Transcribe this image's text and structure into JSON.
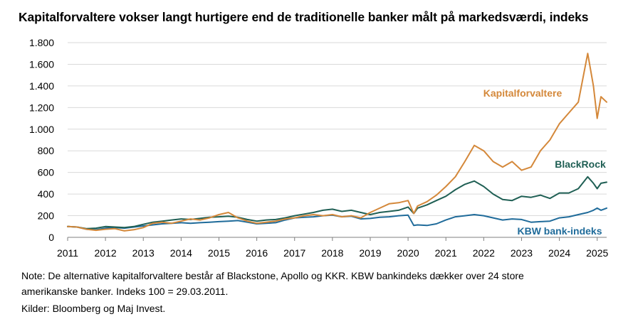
{
  "title": "Kapitalforvaltere vokser langt hurtigere end de traditionelle banker målt på markedsværdi, indeks",
  "note_line1": "Note: De alternative kapitalforvaltere består af Blackstone, Apollo og KKR. KBW bankindeks dækker over 24 store",
  "note_line2": "amerikanske banker. Indeks 100 = 29.03.2011.",
  "sources": "Kilder: Bloomberg og Maj Invest.",
  "chart_data": {
    "type": "line",
    "title": "Kapitalforvaltere vokser langt hurtigere end de traditionelle banker målt på markedsværdi, indeks",
    "xlabel": "",
    "ylabel": "",
    "xlim": [
      2011.0,
      2025.25
    ],
    "ylim": [
      0,
      1800
    ],
    "x_ticks": [
      2011,
      2012,
      2013,
      2014,
      2015,
      2016,
      2017,
      2018,
      2019,
      2020,
      2021,
      2022,
      2023,
      2024,
      2025
    ],
    "x_tick_labels": [
      "2011",
      "2012",
      "2013",
      "2014",
      "2015",
      "2016",
      "2017",
      "2018",
      "2019",
      "2020",
      "2021",
      "2022",
      "2023",
      "2024",
      "2025"
    ],
    "y_ticks": [
      0,
      200,
      400,
      600,
      800,
      1000,
      1200,
      1400,
      1600,
      1800
    ],
    "y_tick_labels": [
      "0",
      "200",
      "400",
      "600",
      "800",
      "1.000",
      "1.200",
      "1.400",
      "1.600",
      "1.800"
    ],
    "grid": "horizontal",
    "series": [
      {
        "name": "Kapitalforvaltere",
        "color": "#d4883a",
        "x": [
          2011.0,
          2011.25,
          2011.5,
          2011.75,
          2012.0,
          2012.25,
          2012.5,
          2012.75,
          2013.0,
          2013.25,
          2013.5,
          2013.75,
          2014.0,
          2014.25,
          2014.5,
          2014.75,
          2015.0,
          2015.25,
          2015.5,
          2015.75,
          2016.0,
          2016.25,
          2016.5,
          2016.75,
          2017.0,
          2017.25,
          2017.5,
          2017.75,
          2018.0,
          2018.25,
          2018.5,
          2018.75,
          2019.0,
          2019.25,
          2019.5,
          2019.75,
          2020.0,
          2020.15,
          2020.25,
          2020.5,
          2020.75,
          2021.0,
          2021.25,
          2021.5,
          2021.75,
          2022.0,
          2022.25,
          2022.5,
          2022.75,
          2023.0,
          2023.25,
          2023.5,
          2023.75,
          2024.0,
          2024.25,
          2024.5,
          2024.75,
          2024.9,
          2025.0,
          2025.1,
          2025.25
        ],
        "values": [
          100,
          95,
          75,
          65,
          75,
          80,
          60,
          70,
          90,
          130,
          140,
          130,
          150,
          170,
          160,
          180,
          210,
          230,
          180,
          150,
          130,
          140,
          150,
          170,
          180,
          200,
          210,
          200,
          210,
          190,
          200,
          180,
          230,
          270,
          310,
          320,
          340,
          220,
          290,
          330,
          390,
          470,
          560,
          700,
          850,
          800,
          700,
          650,
          700,
          620,
          650,
          800,
          900,
          1050,
          1150,
          1250,
          1700,
          1400,
          1100,
          1300,
          1250
        ]
      },
      {
        "name": "BlackRock",
        "color": "#1f5f54",
        "x": [
          2011.0,
          2011.25,
          2011.5,
          2011.75,
          2012.0,
          2012.25,
          2012.5,
          2012.75,
          2013.0,
          2013.25,
          2013.5,
          2013.75,
          2014.0,
          2014.25,
          2014.5,
          2014.75,
          2015.0,
          2015.25,
          2015.5,
          2015.75,
          2016.0,
          2016.25,
          2016.5,
          2016.75,
          2017.0,
          2017.25,
          2017.5,
          2017.75,
          2018.0,
          2018.25,
          2018.5,
          2018.75,
          2019.0,
          2019.25,
          2019.5,
          2019.75,
          2020.0,
          2020.15,
          2020.25,
          2020.5,
          2020.75,
          2021.0,
          2021.25,
          2021.5,
          2021.75,
          2022.0,
          2022.25,
          2022.5,
          2022.75,
          2023.0,
          2023.25,
          2023.5,
          2023.75,
          2024.0,
          2024.25,
          2024.5,
          2024.75,
          2024.9,
          2025.0,
          2025.1,
          2025.25
        ],
        "values": [
          100,
          95,
          80,
          85,
          100,
          95,
          90,
          100,
          120,
          140,
          150,
          160,
          170,
          165,
          175,
          185,
          190,
          195,
          185,
          165,
          150,
          160,
          165,
          180,
          200,
          215,
          230,
          250,
          260,
          240,
          250,
          230,
          210,
          230,
          240,
          250,
          280,
          220,
          270,
          300,
          340,
          380,
          440,
          490,
          520,
          470,
          400,
          350,
          340,
          380,
          370,
          390,
          360,
          410,
          410,
          450,
          560,
          500,
          450,
          500,
          510
        ]
      },
      {
        "name": "KBW bank-indeks",
        "color": "#1f6b9a",
        "x": [
          2011.0,
          2011.25,
          2011.5,
          2011.75,
          2012.0,
          2012.25,
          2012.5,
          2012.75,
          2013.0,
          2013.25,
          2013.5,
          2013.75,
          2014.0,
          2014.25,
          2014.5,
          2014.75,
          2015.0,
          2015.25,
          2015.5,
          2015.75,
          2016.0,
          2016.25,
          2016.5,
          2016.75,
          2017.0,
          2017.25,
          2017.5,
          2017.75,
          2018.0,
          2018.25,
          2018.5,
          2018.75,
          2019.0,
          2019.25,
          2019.5,
          2019.75,
          2020.0,
          2020.15,
          2020.25,
          2020.5,
          2020.75,
          2021.0,
          2021.25,
          2021.5,
          2021.75,
          2022.0,
          2022.25,
          2022.5,
          2022.75,
          2023.0,
          2023.25,
          2023.5,
          2023.75,
          2024.0,
          2024.25,
          2024.5,
          2024.75,
          2024.9,
          2025.0,
          2025.1,
          2025.25
        ],
        "values": [
          100,
          95,
          75,
          70,
          85,
          90,
          85,
          95,
          105,
          115,
          125,
          130,
          135,
          130,
          135,
          140,
          145,
          150,
          155,
          140,
          125,
          130,
          135,
          160,
          180,
          185,
          190,
          200,
          205,
          190,
          195,
          170,
          175,
          185,
          190,
          200,
          205,
          110,
          115,
          110,
          125,
          160,
          190,
          200,
          210,
          200,
          180,
          160,
          170,
          165,
          140,
          145,
          150,
          180,
          190,
          210,
          230,
          250,
          270,
          250,
          270
        ]
      }
    ]
  }
}
